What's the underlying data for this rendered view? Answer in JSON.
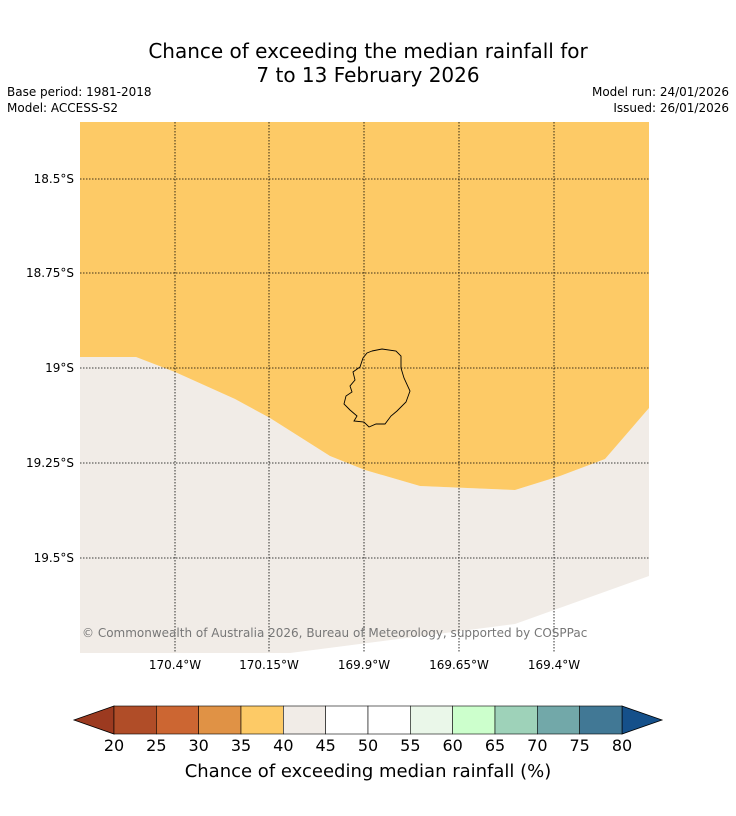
{
  "title": {
    "line1": "Chance of exceeding the median rainfall for",
    "line2": "7 to 13 February 2026"
  },
  "meta": {
    "base_period": "Base period: 1981-2018",
    "model": "Model: ACCESS-S2",
    "model_run": "Model run: 24/01/2026",
    "issued": "Issued: 26/01/2026"
  },
  "map": {
    "lat_labels": [
      "18.5°S",
      "18.75°S",
      "19°S",
      "19.25°S",
      "19.5°S"
    ],
    "lon_labels": [
      "170.4°W",
      "170.15°W",
      "169.9°W",
      "169.65°W",
      "169.4°W"
    ],
    "copyright": "© Commonwealth of Australia 2026, Bureau of Meteorology, supported by COSPPac",
    "region_colors": {
      "upper": "#fdca66",
      "lower": "#f1ece7"
    }
  },
  "colorbar": {
    "title": "Chance of exceeding median rainfall (%)",
    "ticks": [
      "20",
      "25",
      "30",
      "35",
      "40",
      "45",
      "50",
      "55",
      "60",
      "65",
      "70",
      "75",
      "80"
    ],
    "under_color": "#9c3a20",
    "over_color": "#15508a",
    "bins": [
      "#b04d28",
      "#cc6632",
      "#e09245",
      "#fdca66",
      "#f1ece7",
      "#ffffff",
      "#ffffff",
      "#eaf7e9",
      "#ccffcc",
      "#9ed2b9",
      "#72a8a9",
      "#417895"
    ]
  }
}
